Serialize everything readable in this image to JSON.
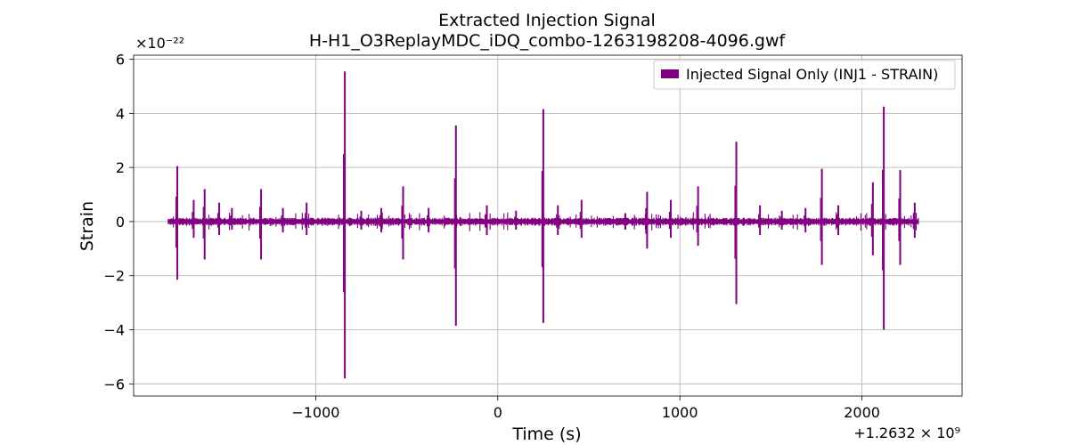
{
  "chart_data": {
    "type": "line",
    "title": "Extracted Injection Signal",
    "subtitle": "H-H1_O3ReplayMDC_iDQ_combo-1263198208-4096.gwf",
    "xlabel": "Time (s)",
    "ylabel": "Strain",
    "x_offset_label": "+1.2632 × 10⁹",
    "y_scale_label": "×10⁻²²",
    "xlim": [
      -2000,
      2550
    ],
    "ylim": [
      -6.45,
      6.15
    ],
    "x_ticks": [
      -1000,
      0,
      1000,
      2000
    ],
    "x_tick_labels": [
      "−1000",
      "0",
      "1000",
      "2000"
    ],
    "y_ticks": [
      -6,
      -4,
      -2,
      0,
      2,
      4,
      6
    ],
    "y_tick_labels": [
      "−6",
      "−4",
      "−2",
      "0",
      "2",
      "4",
      "6"
    ],
    "grid": true,
    "legend_position": "top-right",
    "series": [
      {
        "name": "Injected Signal Only (INJ1 - STRAIN)",
        "color": "#800080",
        "x_range": [
          -1810,
          2310
        ],
        "baseline_amplitude": 0.12,
        "spikes": [
          {
            "x": -1760,
            "max": 2.05,
            "min": -2.15
          },
          {
            "x": -1670,
            "max": 0.8,
            "min": -0.6
          },
          {
            "x": -1610,
            "max": 1.2,
            "min": -1.4
          },
          {
            "x": -1530,
            "max": 0.7,
            "min": -0.5
          },
          {
            "x": -1460,
            "max": 0.5,
            "min": -0.3
          },
          {
            "x": -1300,
            "max": 1.2,
            "min": -1.4
          },
          {
            "x": -1180,
            "max": 0.5,
            "min": -0.4
          },
          {
            "x": -1050,
            "max": 0.7,
            "min": -0.5
          },
          {
            "x": -840,
            "max": 5.55,
            "min": -5.8
          },
          {
            "x": -750,
            "max": 0.4,
            "min": -0.3
          },
          {
            "x": -640,
            "max": 0.5,
            "min": -0.4
          },
          {
            "x": -520,
            "max": 1.3,
            "min": -1.4
          },
          {
            "x": -380,
            "max": 0.5,
            "min": -0.4
          },
          {
            "x": -230,
            "max": 3.55,
            "min": -3.85
          },
          {
            "x": -60,
            "max": 0.6,
            "min": -0.5
          },
          {
            "x": 100,
            "max": 0.4,
            "min": -0.3
          },
          {
            "x": 250,
            "max": 4.15,
            "min": -3.75
          },
          {
            "x": 330,
            "max": 0.6,
            "min": -0.5
          },
          {
            "x": 460,
            "max": 0.8,
            "min": -0.6
          },
          {
            "x": 700,
            "max": 0.3,
            "min": -0.3
          },
          {
            "x": 820,
            "max": 1.1,
            "min": -1.0
          },
          {
            "x": 950,
            "max": 0.8,
            "min": -0.6
          },
          {
            "x": 1100,
            "max": 1.3,
            "min": -0.9
          },
          {
            "x": 1310,
            "max": 2.95,
            "min": -3.05
          },
          {
            "x": 1440,
            "max": 0.6,
            "min": -0.5
          },
          {
            "x": 1560,
            "max": 0.4,
            "min": -0.3
          },
          {
            "x": 1690,
            "max": 0.5,
            "min": -0.4
          },
          {
            "x": 1780,
            "max": 1.95,
            "min": -1.6
          },
          {
            "x": 1870,
            "max": 0.6,
            "min": -0.5
          },
          {
            "x": 2060,
            "max": 1.45,
            "min": -1.25
          },
          {
            "x": 2120,
            "max": 4.25,
            "min": -4.0
          },
          {
            "x": 2210,
            "max": 1.9,
            "min": -1.6
          },
          {
            "x": 2290,
            "max": 0.7,
            "min": -0.6
          }
        ]
      }
    ]
  }
}
